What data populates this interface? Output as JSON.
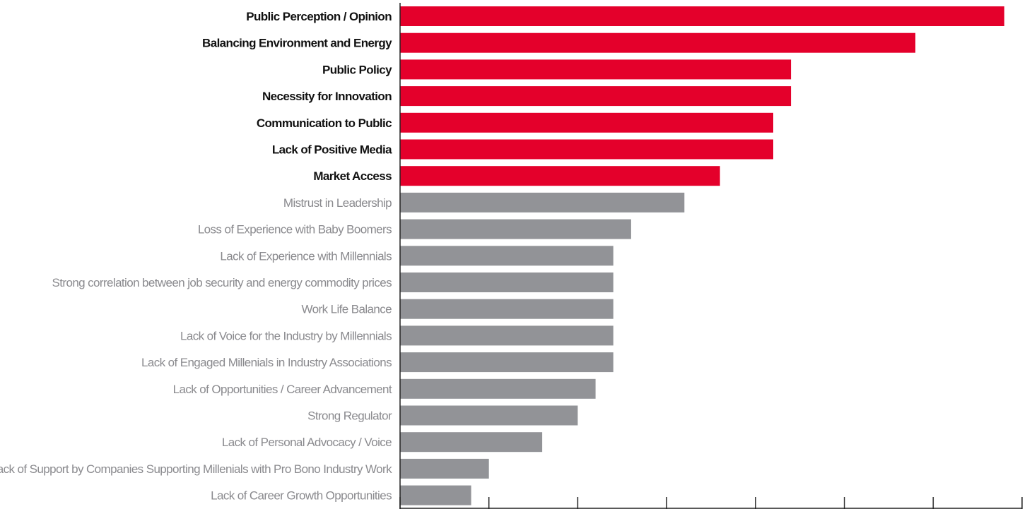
{
  "chart_data": {
    "type": "bar",
    "orientation": "horizontal",
    "categories": [
      "Public Perception / Opinion",
      "Balancing Environment and Energy",
      "Public Policy",
      "Necessity for Innovation",
      "Communication to Public",
      "Lack of Positive Media",
      "Market Access",
      "Mistrust in Leadership",
      "Loss of Experience with Baby Boomers",
      "Lack of Experience with Millennials",
      "Strong correlation between job security and energy commodity prices",
      "Work Life Balance",
      "Lack of Voice for the Industry by Millennials",
      "Lack of Engaged Millenials in Industry Associations",
      "Lack of Opportunities / Career Advancement",
      "Strong Regulator",
      "Lack of Personal Advocacy / Voice",
      "Lack of Support by Companies Supporting Millenials with Pro Bono Industry Work",
      "Lack of Career Growth Opportunities"
    ],
    "values": [
      34,
      29,
      22,
      22,
      21,
      21,
      18,
      16,
      13,
      12,
      12,
      12,
      12,
      12,
      11,
      10,
      8,
      5,
      4
    ],
    "highlighted": [
      true,
      true,
      true,
      true,
      true,
      true,
      true,
      false,
      false,
      false,
      false,
      false,
      false,
      false,
      false,
      false,
      false,
      false,
      false
    ],
    "xlim": [
      0,
      35
    ],
    "xticks": [
      0,
      5,
      10,
      15,
      20,
      25,
      30,
      35
    ],
    "title": "",
    "xlabel": "",
    "ylabel": "",
    "grid": false,
    "legend": "none",
    "colors": {
      "highlight": "#e4002b",
      "normal": "#929397",
      "axis": "#222222",
      "label_highlight": "#111111",
      "label_normal": "#8a8a8e"
    }
  }
}
